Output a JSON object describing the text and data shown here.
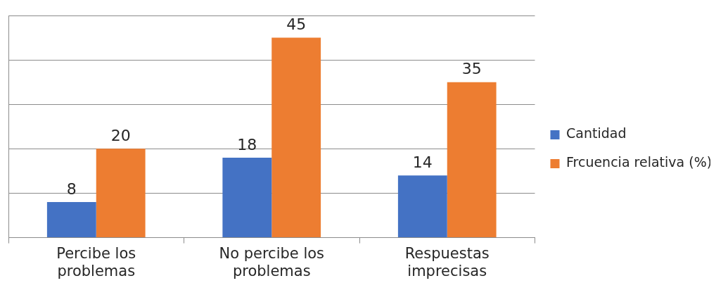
{
  "chart_data": {
    "type": "bar",
    "categories": [
      "Percibe los problemas",
      "No percibe los problemas",
      "Respuestas imprecisas"
    ],
    "series": [
      {
        "name": "Cantidad",
        "color": "#4472c4",
        "values": [
          8,
          18,
          14
        ]
      },
      {
        "name": "Frcuencia relativa (%)",
        "color": "#ed7d31",
        "values": [
          20,
          45,
          35
        ]
      }
    ],
    "ylim": [
      0,
      50
    ],
    "yticks": [
      {
        "value": 0,
        "label": null
      },
      {
        "value": 10,
        "label": null
      },
      {
        "value": 20,
        "label": null
      },
      {
        "value": 30,
        "label": null
      },
      {
        "value": 40,
        "label": null
      },
      {
        "value": 50,
        "label": null
      }
    ],
    "tick_labels": "x",
    "grid": "y",
    "legend": "right",
    "data_labels": true
  }
}
